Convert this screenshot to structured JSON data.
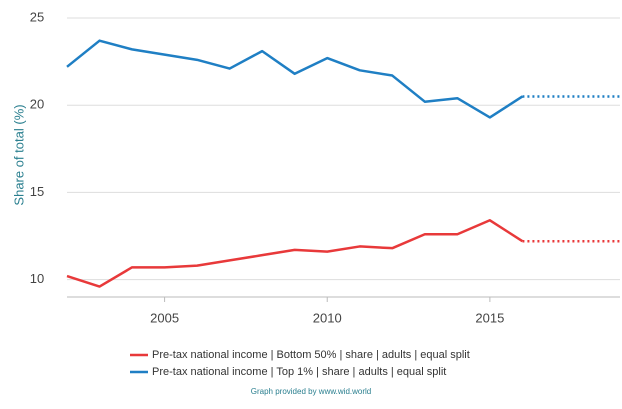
{
  "chart_data": {
    "type": "line",
    "y_label": "Share of total (%)",
    "x": [
      2002,
      2003,
      2004,
      2005,
      2006,
      2007,
      2008,
      2009,
      2010,
      2011,
      2012,
      2013,
      2014,
      2015,
      2016,
      2019
    ],
    "series": [
      {
        "name": "Pre-tax national income | Bottom 50% | share | adults | equal split",
        "color": "#e8393a",
        "values": [
          10.2,
          9.6,
          10.7,
          10.7,
          10.8,
          11.1,
          11.4,
          11.7,
          11.6,
          11.9,
          11.8,
          12.6,
          12.6,
          13.4,
          12.2,
          12.2
        ]
      },
      {
        "name": "Pre-tax national income | Top 1% | share | adults | equal split",
        "color": "#1f7fc4",
        "values": [
          22.2,
          23.7,
          23.2,
          22.9,
          22.6,
          22.1,
          23.1,
          21.8,
          22.7,
          22.0,
          21.7,
          20.2,
          20.4,
          19.3,
          20.5,
          20.5
        ]
      }
    ],
    "dashed_last_segment": true,
    "xlim": [
      2002,
      2019
    ],
    "xticks": [
      2005,
      2010,
      2015
    ],
    "ylim": [
      9,
      25
    ],
    "yticks": [
      10,
      15,
      20,
      25
    ],
    "grid": true,
    "credit": "Graph provided by www.wid.world"
  }
}
